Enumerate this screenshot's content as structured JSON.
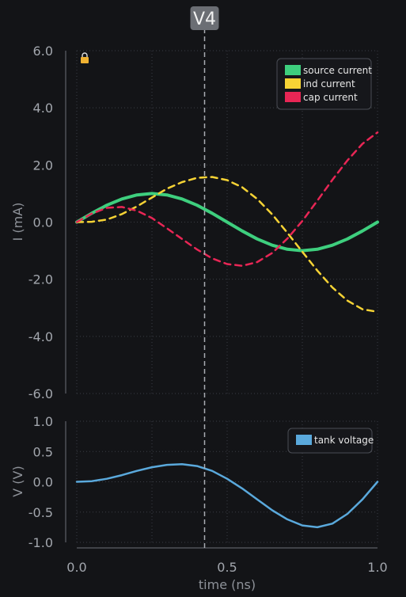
{
  "cursor": {
    "label": "V4",
    "x": 0.425,
    "lock_icon": "lock-icon"
  },
  "colors": {
    "background": "#131417",
    "grid": "#3a3d44",
    "axis": "#6d7078"
  },
  "chart_data": [
    {
      "type": "line",
      "ylabel": "I (mA)",
      "xlim": [
        0,
        1
      ],
      "ylim": [
        -6,
        6
      ],
      "yticks": [
        6,
        4,
        2,
        0,
        -2,
        -4,
        -6
      ],
      "ytick_labels": [
        "6.0",
        "4.0",
        "2.0",
        "0.0",
        "-2.0",
        "-4.0",
        "-6.0"
      ],
      "grid": true,
      "legend_position": "top-right",
      "x": [
        0,
        0.05,
        0.1,
        0.15,
        0.2,
        0.25,
        0.3,
        0.35,
        0.4,
        0.45,
        0.5,
        0.55,
        0.6,
        0.65,
        0.7,
        0.75,
        0.8,
        0.85,
        0.9,
        0.95,
        1.0
      ],
      "series": [
        {
          "name": "source current",
          "color": "#3ecf7e",
          "dash": "solid",
          "values": [
            0,
            0.31,
            0.59,
            0.81,
            0.95,
            1.0,
            0.95,
            0.81,
            0.59,
            0.31,
            0,
            -0.31,
            -0.59,
            -0.81,
            -0.95,
            -1.0,
            -0.95,
            -0.81,
            -0.59,
            -0.31,
            0
          ]
        },
        {
          "name": "ind current",
          "color": "#f6d335",
          "dash": "dashed",
          "values": [
            0,
            0.01,
            0.09,
            0.28,
            0.55,
            0.86,
            1.17,
            1.4,
            1.55,
            1.58,
            1.47,
            1.22,
            0.81,
            0.27,
            -0.37,
            -1.04,
            -1.7,
            -2.29,
            -2.75,
            -3.05,
            -3.14
          ]
        },
        {
          "name": "cap current",
          "color": "#e82655",
          "dash": "dashed",
          "values": [
            0,
            0.3,
            0.5,
            0.53,
            0.4,
            0.14,
            -0.22,
            -0.59,
            -0.96,
            -1.27,
            -1.47,
            -1.53,
            -1.4,
            -1.08,
            -0.58,
            0.04,
            0.75,
            1.48,
            2.16,
            2.74,
            3.14
          ]
        }
      ]
    },
    {
      "type": "line",
      "ylabel": "V (V)",
      "xlabel": "time (ns)",
      "xlim": [
        0,
        1
      ],
      "ylim": [
        -1,
        1
      ],
      "yticks": [
        1,
        0.5,
        0,
        -0.5,
        -1
      ],
      "ytick_labels": [
        "1.0",
        "0.5",
        "0.0",
        "-0.5",
        "-1.0"
      ],
      "xticks": [
        0,
        0.5,
        1
      ],
      "xtick_labels": [
        "0.0",
        "0.5",
        "1.0"
      ],
      "grid": true,
      "legend_position": "top-right",
      "x": [
        0,
        0.05,
        0.1,
        0.15,
        0.2,
        0.25,
        0.3,
        0.35,
        0.4,
        0.45,
        0.5,
        0.55,
        0.6,
        0.65,
        0.7,
        0.75,
        0.8,
        0.85,
        0.9,
        0.95,
        1.0
      ],
      "series": [
        {
          "name": "tank voltage",
          "color": "#5aa9dc",
          "dash": "solid",
          "values": [
            0,
            0.01,
            0.05,
            0.11,
            0.18,
            0.24,
            0.28,
            0.29,
            0.26,
            0.18,
            0.05,
            -0.11,
            -0.29,
            -0.47,
            -0.62,
            -0.72,
            -0.75,
            -0.69,
            -0.53,
            -0.29,
            0
          ]
        }
      ]
    }
  ]
}
